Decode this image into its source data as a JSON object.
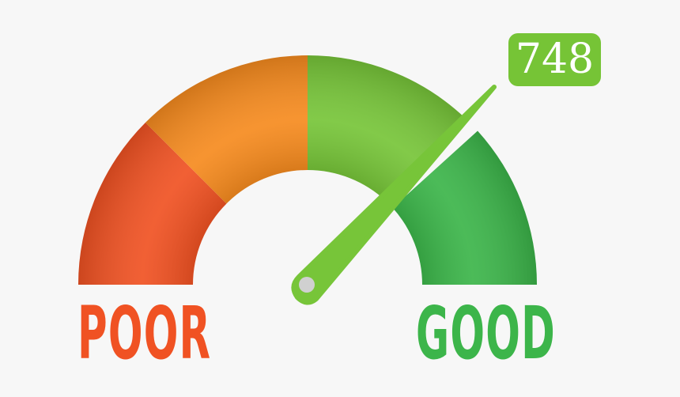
{
  "gauge": {
    "score": "748",
    "low_label": "POOR",
    "high_label": "GOOD",
    "segments": [
      {
        "color": "#f05223"
      },
      {
        "color": "#f68b1f"
      },
      {
        "color": "#77c539"
      },
      {
        "color": "#3cb54a"
      }
    ],
    "needle_color": "#77c539",
    "pivot_color": "#d0d0d0"
  }
}
